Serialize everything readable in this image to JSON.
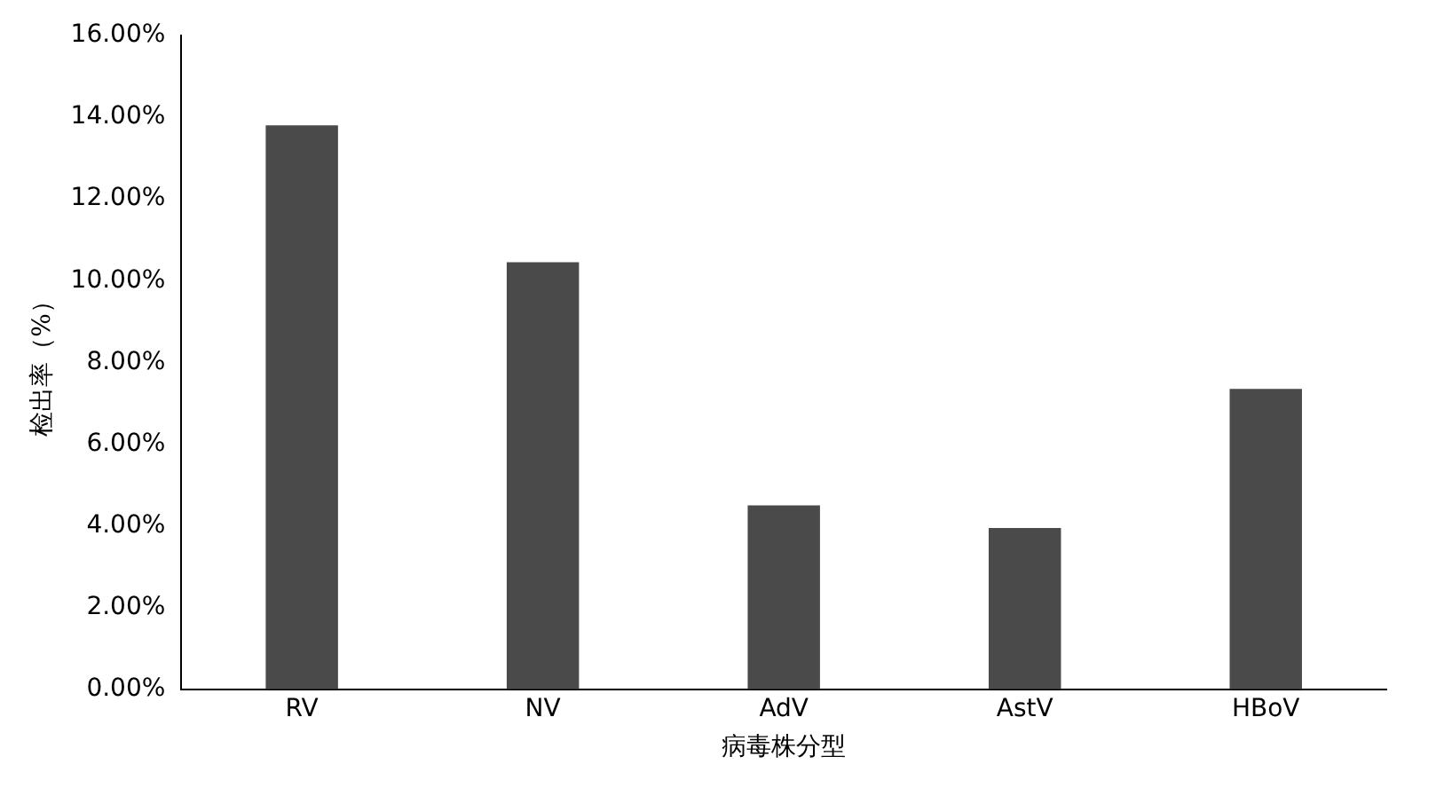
{
  "chart_data": {
    "type": "bar",
    "xlabel": "病毒株分型",
    "ylabel": "检出率（%）",
    "categories": [
      "RV",
      "NV",
      "AdV",
      "AstV",
      "HBoV"
    ],
    "values": [
      13.8,
      10.45,
      4.5,
      3.95,
      7.35
    ],
    "color": "#4a4a4a",
    "ylim": [
      0,
      16
    ],
    "yticks": [
      {
        "value": 0,
        "label": "0.00%"
      },
      {
        "value": 2,
        "label": "2.00%"
      },
      {
        "value": 4,
        "label": "4.00%"
      },
      {
        "value": 6,
        "label": "6.00%"
      },
      {
        "value": 8,
        "label": "8.00%"
      },
      {
        "value": 10,
        "label": "10.00%"
      },
      {
        "value": 12,
        "label": "12.00%"
      },
      {
        "value": 14,
        "label": "14.00%"
      },
      {
        "value": 16,
        "label": "16.00%"
      }
    ],
    "grid": false,
    "legend": false
  }
}
